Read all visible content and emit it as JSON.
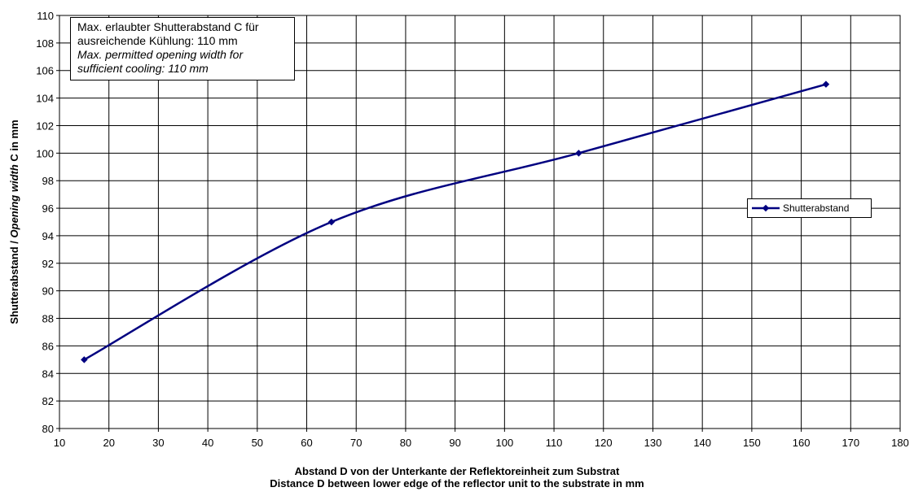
{
  "chart_data": {
    "type": "line",
    "x": [
      15,
      65,
      115,
      165
    ],
    "series": [
      {
        "name": "Shutterabstand",
        "values": [
          85,
          95,
          100,
          105
        ],
        "color": "#000080"
      }
    ],
    "xlim": [
      10,
      180
    ],
    "ylim": [
      80,
      110
    ],
    "xticks": [
      10,
      20,
      30,
      40,
      50,
      60,
      70,
      80,
      90,
      100,
      110,
      120,
      130,
      140,
      150,
      160,
      170,
      180
    ],
    "yticks": [
      80,
      82,
      84,
      86,
      88,
      90,
      92,
      94,
      96,
      98,
      100,
      102,
      104,
      106,
      108,
      110
    ],
    "xlabel_line1": "Abstand D von der Unterkante der Reflektoreinheit zum Substrat",
    "xlabel_line2": "Distance D between lower edge of the reflector unit to the substrate in mm",
    "ylabel_plain": "Shutterabstand / ",
    "ylabel_italic": "Opening width",
    "ylabel_tail": " C in mm",
    "grid": true,
    "legend_position": "right",
    "annotation": {
      "line1": "Max. erlaubter Shutterabstand C für",
      "line2": "ausreichende Kühlung: 110 mm",
      "line3": "Max. permitted opening width for",
      "line4": "sufficient cooling: 110 mm"
    }
  }
}
